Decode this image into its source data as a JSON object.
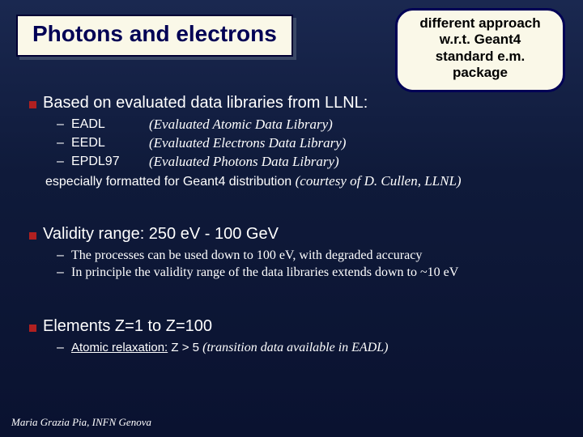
{
  "title": "Photons and electrons",
  "callout": {
    "line1": "different approach",
    "line2": "w.r.t. Geant4",
    "line3": "standard e.m.",
    "line4": "package"
  },
  "section1": {
    "heading": "Based on evaluated data libraries from LLNL:",
    "libs": [
      {
        "name": "EADL",
        "desc": "(Evaluated Atomic Data Library)"
      },
      {
        "name": "EEDL",
        "desc": "(Evaluated Electrons Data Library)"
      },
      {
        "name": "EPDL97",
        "desc": "(Evaluated Photons Data Library)"
      }
    ],
    "especially_a": "especially formatted for Geant4 distribution ",
    "especially_b": "(courtesy of D. Cullen, LLNL)"
  },
  "section2": {
    "heading": "Validity range: 250 eV - 100 GeV",
    "subs": [
      "The processes can be used down to 100 eV, with degraded accuracy",
      "In principle the validity range of the data libraries extends down to ~10 eV"
    ]
  },
  "section3": {
    "heading": "Elements Z=1 to Z=100",
    "sub_prefix": "Atomic relaxation:",
    "sub_mid": " Z > 5 ",
    "sub_ital": "(transition data available in EADL)"
  },
  "footer": "Maria Grazia Pia, INFN Genova",
  "colors": {
    "bg_top": "#1a2850",
    "bg_bottom": "#0a1230",
    "title_bg": "#faf8e8",
    "title_border": "#000033",
    "title_shadow": "#3a4866",
    "title_text": "#000055",
    "callout_border": "#000055",
    "bullet": "#b02020",
    "text": "#ffffff"
  },
  "fonts": {
    "title": "Comic Sans MS",
    "body_sans": "Arial",
    "body_serif": "Times New Roman"
  }
}
